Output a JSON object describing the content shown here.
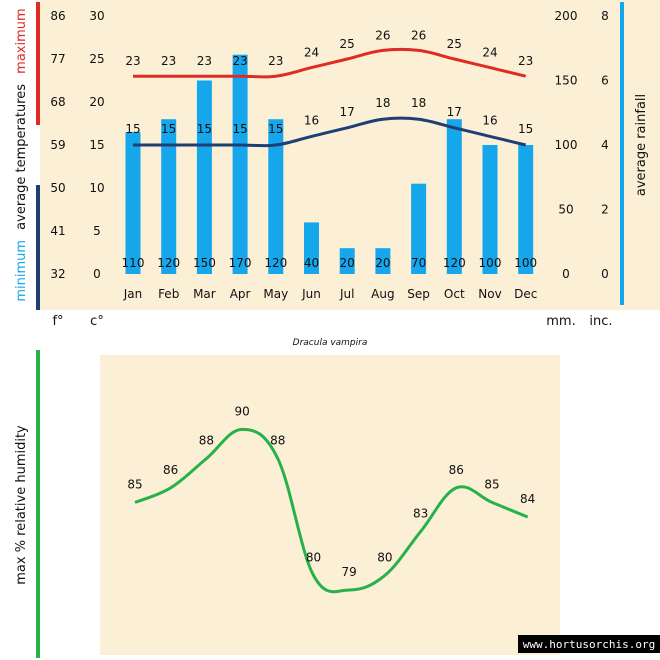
{
  "source": {
    "credit": "www.hortusorchis.org"
  },
  "chart_data": [
    {
      "type": "bar",
      "title": "Dracula vampira",
      "categories": [
        "Jan",
        "Feb",
        "Mar",
        "Apr",
        "May",
        "Jun",
        "Jul",
        "Aug",
        "Sep",
        "Oct",
        "Nov",
        "Dec"
      ],
      "rainfall_mm": [
        110,
        120,
        150,
        170,
        120,
        40,
        20,
        20,
        70,
        120,
        100,
        100
      ],
      "max_temp_c": [
        23,
        23,
        23,
        23,
        23,
        24,
        25,
        26,
        26,
        25,
        24,
        23
      ],
      "min_temp_c": [
        15,
        15,
        15,
        15,
        15,
        16,
        17,
        18,
        18,
        17,
        16,
        15
      ],
      "series": [
        {
          "name": "average rainfall",
          "type": "bar",
          "axis": "right",
          "color": "#16a6ec"
        },
        {
          "name": "maximum",
          "type": "line",
          "axis": "left",
          "color": "#e02a24"
        },
        {
          "name": "minimum",
          "type": "line",
          "axis": "left",
          "color": "#1f3f74"
        }
      ],
      "y_left": {
        "label_parts": [
          "minimum",
          "average temperatures",
          "maximum"
        ],
        "celsius_ticks": [
          0,
          5,
          10,
          15,
          20,
          25,
          30
        ],
        "fahrenheit_ticks": [
          32,
          41,
          50,
          59,
          68,
          77,
          86
        ],
        "ylim": [
          0,
          30
        ],
        "unit_c": "c°",
        "unit_f": "f°"
      },
      "y_right": {
        "label": "average rainfall",
        "mm_ticks": [
          0,
          50,
          100,
          150,
          200
        ],
        "inch_ticks": [
          0,
          2,
          4,
          6,
          8
        ],
        "ylim": [
          0,
          200
        ],
        "unit_mm": "mm.",
        "unit_in": "inc."
      },
      "colors": {
        "rain": "#16a6ec",
        "max": "#e02a24",
        "min": "#1f3f74",
        "parchment": "#fbf0d6"
      }
    },
    {
      "type": "line",
      "ylabel": "max % relative humidity",
      "values": [
        85,
        86,
        88,
        90,
        88,
        80,
        79,
        80,
        83,
        86,
        85,
        84
      ],
      "color": "#27b14a"
    }
  ]
}
